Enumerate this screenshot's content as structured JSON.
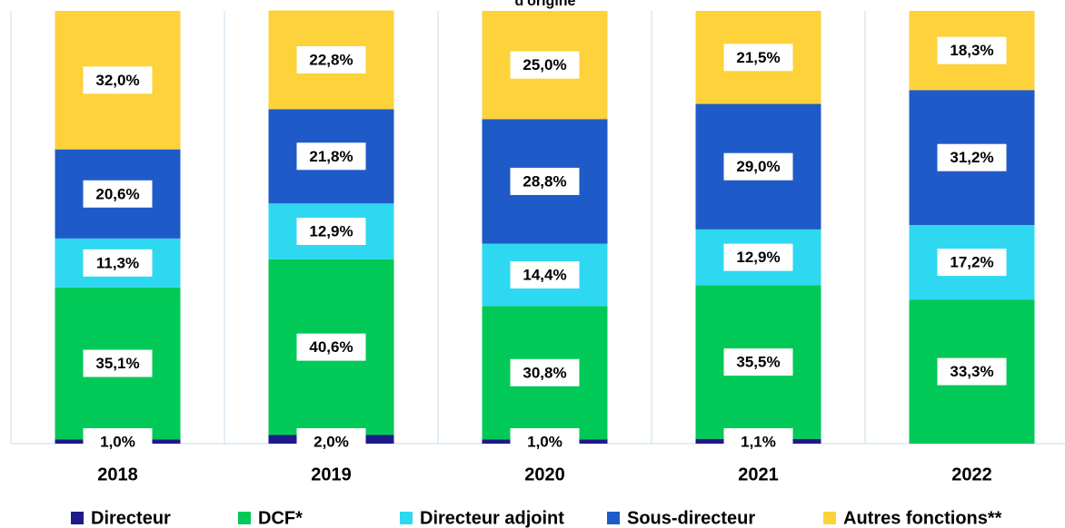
{
  "chart_data": {
    "type": "bar",
    "stacked": true,
    "title": "d'origine",
    "categories": [
      "2018",
      "2019",
      "2020",
      "2021",
      "2022"
    ],
    "ylim": [
      0,
      100
    ],
    "series": [
      {
        "name": "Directeur",
        "color": "#1f1a8a",
        "values": [
          1.0,
          2.0,
          1.0,
          1.1,
          0
        ],
        "value_labels": [
          "1,0%",
          "2,0%",
          "1,0%",
          "1,1%",
          null
        ]
      },
      {
        "name": "DCF*",
        "color": "#00c957",
        "values": [
          35.1,
          40.6,
          30.8,
          35.5,
          33.3
        ],
        "value_labels": [
          "35,1%",
          "40,6%",
          "30,8%",
          "35,5%",
          "33,3%"
        ]
      },
      {
        "name": "Directeur adjoint",
        "color": "#2ed8f0",
        "values": [
          11.3,
          12.9,
          14.4,
          12.9,
          17.2
        ],
        "value_labels": [
          "11,3%",
          "12,9%",
          "14,4%",
          "12,9%",
          "17,2%"
        ]
      },
      {
        "name": "Sous-directeur",
        "color": "#1f5bc8",
        "values": [
          20.6,
          21.8,
          28.8,
          29.0,
          31.2
        ],
        "value_labels": [
          "20,6%",
          "21,8%",
          "28,8%",
          "29,0%",
          "31,2%"
        ]
      },
      {
        "name": "Autres fonctions**",
        "color": "#fdd23a",
        "values": [
          32.0,
          22.8,
          25.0,
          21.5,
          18.3
        ],
        "value_labels": [
          "32,0%",
          "22,8%",
          "25,0%",
          "21,5%",
          "18,3%"
        ]
      }
    ]
  }
}
